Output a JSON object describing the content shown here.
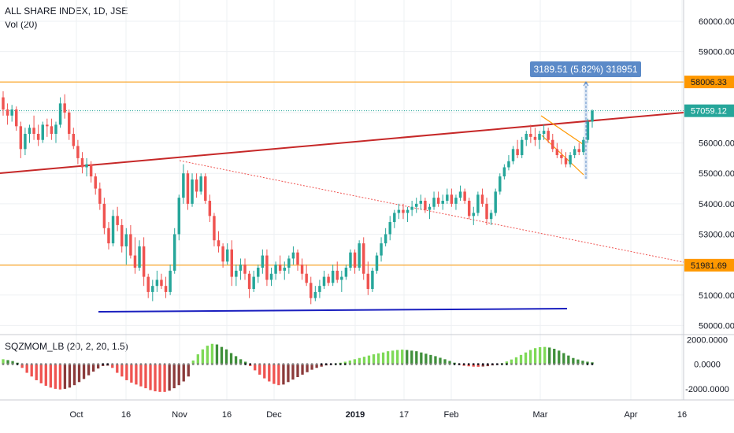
{
  "header": {
    "title": "ALL SHARE INDEX, 1D, JSE",
    "volume_label": "Vol (20)",
    "indicator_label": "SQZMOM_LB (20, 2, 20, 1.5)"
  },
  "colors": {
    "up": "#26a69a",
    "down": "#ef5350",
    "grid": "#eef0f3",
    "orange": "#ff9800",
    "teal_line": "#26a69a",
    "red_trend": "#c62828",
    "blue_support": "#1a1fbf",
    "dotted_trend": "#ef5350",
    "measure_bg": "#5b8ac8",
    "mom_lime": "#7ed957",
    "mom_green": "#3f8f3a",
    "mom_red": "#ef5350",
    "mom_maroon": "#8b3a3a"
  },
  "chart_data": {
    "type": "candlestick",
    "title": "ALL SHARE INDEX, 1D, JSE",
    "price_axis": {
      "ylim": [
        49700,
        60700
      ],
      "ticks": [
        "60000.00",
        "59000.00",
        "58000.00",
        "57000.00",
        "56000.00",
        "55000.00",
        "54000.00",
        "53000.00",
        "52000.00",
        "51000.00",
        "50000.00"
      ],
      "tick_values": [
        60000,
        59000,
        58000,
        57000,
        56000,
        55000,
        54000,
        53000,
        52000,
        51000,
        50000
      ]
    },
    "x_axis": {
      "labels": [
        "Oct",
        "16",
        "Nov",
        "16",
        "Dec",
        "2019",
        "17",
        "Feb",
        "Mar",
        "Apr",
        "16"
      ],
      "bold": [
        "2019"
      ]
    },
    "horizontal_levels": [
      {
        "label": "58006.33",
        "value": 58006.33,
        "style": "orange"
      },
      {
        "label": "57059.12",
        "value": 57059.12,
        "style": "current"
      },
      {
        "label": "51981.69",
        "value": 51981.69,
        "style": "orange"
      }
    ],
    "measure": {
      "label": "3189.51 (5.82%) 318951",
      "from": 54817,
      "to": 58006.33
    },
    "candles": [
      [
        57500,
        57700,
        56900,
        57100
      ],
      [
        57100,
        57300,
        56600,
        56900
      ],
      [
        56900,
        57250,
        56700,
        57100
      ],
      [
        57100,
        57200,
        56400,
        56550
      ],
      [
        56550,
        56700,
        55500,
        55800
      ],
      [
        55800,
        56500,
        55600,
        56300
      ],
      [
        56300,
        56600,
        56000,
        56500
      ],
      [
        56500,
        56900,
        56100,
        56300
      ],
      [
        56300,
        56600,
        55900,
        56100
      ],
      [
        56100,
        56700,
        56000,
        56600
      ],
      [
        56600,
        56800,
        56200,
        56550
      ],
      [
        56550,
        56800,
        56100,
        56300
      ],
      [
        56300,
        56700,
        56000,
        56600
      ],
      [
        56600,
        57500,
        56500,
        57300
      ],
      [
        57300,
        57600,
        56800,
        57000
      ],
      [
        57000,
        57100,
        56100,
        56300
      ],
      [
        56300,
        56500,
        55800,
        55900
      ],
      [
        55900,
        56100,
        55300,
        55500
      ],
      [
        55500,
        55700,
        55000,
        55200
      ],
      [
        55200,
        55500,
        54900,
        55300
      ],
      [
        55300,
        55400,
        54700,
        54900
      ],
      [
        54900,
        55000,
        54300,
        54500
      ],
      [
        54500,
        54700,
        53800,
        54000
      ],
      [
        54000,
        54200,
        53000,
        53200
      ],
      [
        53200,
        53400,
        52500,
        52700
      ],
      [
        52700,
        53800,
        52600,
        53600
      ],
      [
        53600,
        53900,
        53100,
        53300
      ],
      [
        53300,
        53500,
        52400,
        52600
      ],
      [
        52600,
        53200,
        52000,
        53000
      ],
      [
        53000,
        53300,
        52200,
        52300
      ],
      [
        52300,
        52900,
        51700,
        51900
      ],
      [
        51900,
        52800,
        51800,
        52600
      ],
      [
        52600,
        52900,
        51300,
        51600
      ],
      [
        51600,
        51700,
        50900,
        51100
      ],
      [
        51100,
        51500,
        50800,
        51300
      ],
      [
        51300,
        51800,
        51100,
        51500
      ],
      [
        51500,
        51700,
        51200,
        51300
      ],
      [
        51300,
        51600,
        50900,
        51100
      ],
      [
        51100,
        52000,
        51000,
        51800
      ],
      [
        51800,
        53200,
        51700,
        53000
      ],
      [
        53000,
        54300,
        52800,
        54200
      ],
      [
        54200,
        55300,
        54000,
        55000
      ],
      [
        55000,
        55100,
        53800,
        54000
      ],
      [
        54000,
        55000,
        53900,
        54800
      ],
      [
        54800,
        55000,
        54200,
        54400
      ],
      [
        54400,
        55000,
        54300,
        54900
      ],
      [
        54900,
        55000,
        54000,
        54100
      ],
      [
        54100,
        54300,
        53400,
        53600
      ],
      [
        53600,
        53700,
        52600,
        52800
      ],
      [
        52800,
        53100,
        52400,
        52600
      ],
      [
        52600,
        52700,
        51900,
        52100
      ],
      [
        52100,
        52700,
        52000,
        52500
      ],
      [
        52500,
        52800,
        51300,
        51600
      ],
      [
        51600,
        52000,
        51300,
        51800
      ],
      [
        51800,
        52200,
        51500,
        52000
      ],
      [
        52000,
        52200,
        51500,
        51700
      ],
      [
        51700,
        51800,
        50900,
        51200
      ],
      [
        51200,
        51800,
        51100,
        51600
      ],
      [
        51600,
        52000,
        51400,
        51900
      ],
      [
        51900,
        52500,
        51700,
        52300
      ],
      [
        52300,
        52500,
        51300,
        51500
      ],
      [
        51500,
        51900,
        51300,
        51700
      ],
      [
        51700,
        52100,
        51500,
        52000
      ],
      [
        52000,
        52300,
        51700,
        51800
      ],
      [
        51800,
        52100,
        51500,
        51900
      ],
      [
        51900,
        52300,
        51700,
        52200
      ],
      [
        52200,
        52600,
        52000,
        52400
      ],
      [
        52400,
        52500,
        51800,
        52000
      ],
      [
        52000,
        52200,
        51500,
        51700
      ],
      [
        51700,
        52000,
        51300,
        51400
      ],
      [
        51400,
        51600,
        50700,
        50900
      ],
      [
        50900,
        51300,
        50800,
        51100
      ],
      [
        51100,
        51500,
        50900,
        51300
      ],
      [
        51300,
        51800,
        51200,
        51600
      ],
      [
        51600,
        51700,
        51300,
        51400
      ],
      [
        51400,
        52000,
        51300,
        51800
      ],
      [
        51800,
        52100,
        51400,
        51500
      ],
      [
        51500,
        51800,
        51100,
        51600
      ],
      [
        51600,
        52000,
        51500,
        51900
      ],
      [
        51900,
        52500,
        51800,
        52400
      ],
      [
        52400,
        52500,
        51700,
        51900
      ],
      [
        51900,
        52800,
        51800,
        52700
      ],
      [
        52700,
        52900,
        51500,
        51700
      ],
      [
        51700,
        52100,
        51000,
        51200
      ],
      [
        51200,
        51900,
        51100,
        51800
      ],
      [
        51800,
        52400,
        51700,
        52300
      ],
      [
        52300,
        52900,
        52100,
        52700
      ],
      [
        52700,
        53200,
        52600,
        53000
      ],
      [
        53000,
        53600,
        52800,
        53400
      ],
      [
        53400,
        53800,
        53200,
        53700
      ],
      [
        53700,
        54000,
        53500,
        53800
      ],
      [
        53800,
        54000,
        53500,
        53700
      ],
      [
        53700,
        53900,
        53400,
        53800
      ],
      [
        53800,
        54100,
        53600,
        53900
      ],
      [
        53900,
        54200,
        53700,
        54000
      ],
      [
        54000,
        54300,
        53800,
        54100
      ],
      [
        54100,
        54200,
        53700,
        53800
      ],
      [
        53800,
        54000,
        53500,
        53900
      ],
      [
        53900,
        54400,
        53800,
        54200
      ],
      [
        54200,
        54400,
        53900,
        54000
      ],
      [
        54000,
        54300,
        53800,
        54100
      ],
      [
        54100,
        54500,
        54000,
        54300
      ],
      [
        54300,
        54500,
        53900,
        54000
      ],
      [
        54000,
        54300,
        53800,
        54200
      ],
      [
        54200,
        54600,
        54100,
        54400
      ],
      [
        54400,
        54500,
        54000,
        54100
      ],
      [
        54100,
        54200,
        53500,
        53600
      ],
      [
        53600,
        53900,
        53300,
        53700
      ],
      [
        53700,
        54400,
        53600,
        54300
      ],
      [
        54300,
        54500,
        53900,
        54000
      ],
      [
        54000,
        54200,
        53300,
        53500
      ],
      [
        53500,
        53800,
        53300,
        53700
      ],
      [
        53700,
        54500,
        53600,
        54400
      ],
      [
        54400,
        55000,
        54300,
        54900
      ],
      [
        54900,
        55300,
        54800,
        55200
      ],
      [
        55200,
        55600,
        55100,
        55400
      ],
      [
        55400,
        55900,
        55300,
        55800
      ],
      [
        55800,
        56100,
        55500,
        55600
      ],
      [
        55600,
        56200,
        55500,
        56100
      ],
      [
        56100,
        56400,
        55900,
        56300
      ],
      [
        56300,
        56600,
        56000,
        56200
      ],
      [
        56200,
        56500,
        55900,
        56100
      ],
      [
        56100,
        56400,
        55800,
        56300
      ],
      [
        56300,
        56600,
        56100,
        56400
      ],
      [
        56400,
        56500,
        56000,
        56100
      ],
      [
        56100,
        56300,
        55700,
        55800
      ],
      [
        55800,
        56000,
        55500,
        55600
      ],
      [
        55600,
        55800,
        55300,
        55500
      ],
      [
        55500,
        55700,
        55200,
        55300
      ],
      [
        55300,
        55700,
        55200,
        55600
      ],
      [
        55600,
        55900,
        55500,
        55800
      ],
      [
        55800,
        56000,
        55600,
        55700
      ],
      [
        55700,
        56200,
        55600,
        56100
      ],
      [
        56100,
        56800,
        56000,
        56700
      ],
      [
        56700,
        57100,
        56500,
        57059
      ]
    ]
  },
  "momentum": {
    "ticks": [
      "2000.0000",
      "0.0000",
      "-2000.0000"
    ],
    "tick_values": [
      2000,
      0,
      -2000
    ],
    "ylim": [
      -2900,
      2400
    ],
    "values": [
      400,
      330,
      250,
      120,
      -300,
      -700,
      -1000,
      -1300,
      -1550,
      -1750,
      -1900,
      -2000,
      -2050,
      -2000,
      -1900,
      -1700,
      -1450,
      -1200,
      -900,
      -600,
      -350,
      -150,
      -120,
      -300,
      -700,
      -1000,
      -1300,
      -1500,
      -1650,
      -1800,
      -1950,
      -2100,
      -2200,
      -2250,
      -2250,
      -2150,
      -1950,
      -1700,
      -1400,
      -1000,
      300,
      800,
      1200,
      1500,
      1650,
      1600,
      1400,
      1200,
      900,
      650,
      400,
      200,
      -150,
      -500,
      -850,
      -1150,
      -1400,
      -1600,
      -1700,
      -1650,
      -1450,
      -1250,
      -1050,
      -850,
      -650,
      -450,
      -300,
      -200,
      -100,
      -40,
      50,
      120,
      200,
      300,
      400,
      500,
      600,
      700,
      800,
      880,
      950,
      1050,
      1100,
      1150,
      1180,
      1150,
      1100,
      1050,
      950,
      850,
      750,
      650,
      520,
      400,
      260,
      120,
      -60,
      -130,
      -170,
      -200,
      -210,
      -190,
      -160,
      -100,
      -40,
      80,
      220,
      380,
      560,
      750,
      950,
      1150,
      1300,
      1380,
      1400,
      1350,
      1250,
      1100,
      900,
      700,
      500,
      380,
      280,
      200,
      150
    ]
  }
}
